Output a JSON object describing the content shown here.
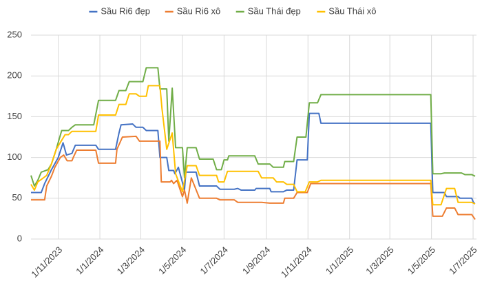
{
  "chart_data": {
    "type": "line",
    "xlim": [
      "2023-09-22",
      "2025-07-06"
    ],
    "xticks": [
      {
        "value": "2023-11-01",
        "label": "1/11/2023"
      },
      {
        "value": "2024-01-01",
        "label": "1/1/2024"
      },
      {
        "value": "2024-03-01",
        "label": "1/3/2024"
      },
      {
        "value": "2024-05-01",
        "label": "1/5/2024"
      },
      {
        "value": "2024-07-01",
        "label": "1/7/2024"
      },
      {
        "value": "2024-09-01",
        "label": "1/9/2024"
      },
      {
        "value": "2024-11-01",
        "label": "1/11/2024"
      },
      {
        "value": "2025-01-01",
        "label": "1/1/2025"
      },
      {
        "value": "2025-03-01",
        "label": "1/3/2025"
      },
      {
        "value": "2025-05-01",
        "label": "1/5/2025"
      },
      {
        "value": "2025-07-01",
        "label": "1/7/2025"
      }
    ],
    "ylim": [
      0,
      250
    ],
    "yticks": [
      0,
      50,
      100,
      150,
      200,
      250
    ],
    "grid": true,
    "legend": "top",
    "series": [
      {
        "name": "Sầu Ri6 đẹp",
        "color": "#4472c4",
        "x": [
          "2023-09-22",
          "2023-10-07",
          "2023-10-12",
          "2023-10-22",
          "2023-11-01",
          "2023-11-08",
          "2023-11-13",
          "2023-11-21",
          "2023-11-26",
          "2023-12-26",
          "2023-12-30",
          "2024-01-24",
          "2024-01-29",
          "2024-02-01",
          "2024-02-18",
          "2024-02-23",
          "2024-03-04",
          "2024-03-09",
          "2024-03-26",
          "2024-03-29",
          "2024-04-08",
          "2024-04-11",
          "2024-04-18",
          "2024-04-20",
          "2024-04-25",
          "2024-05-04",
          "2024-05-06",
          "2024-05-21",
          "2024-05-26",
          "2024-06-20",
          "2024-06-25",
          "2024-07-16",
          "2024-07-21",
          "2024-07-26",
          "2024-08-15",
          "2024-08-17",
          "2024-09-06",
          "2024-09-08",
          "2024-09-26",
          "2024-10-01",
          "2024-10-11",
          "2024-10-16",
          "2024-10-31",
          "2024-11-03",
          "2024-11-17",
          "2024-11-20",
          "2025-04-30",
          "2025-05-03",
          "2025-05-20",
          "2025-05-23",
          "2025-06-09",
          "2025-06-12",
          "2025-06-29",
          "2025-07-02",
          "2025-07-04"
        ],
        "values": [
          57,
          57,
          68,
          85,
          100,
          118,
          103,
          105,
          115,
          115,
          110,
          110,
          130,
          140,
          141,
          137,
          137,
          133,
          133,
          100,
          100,
          84,
          84,
          80,
          88,
          60,
          82,
          82,
          65,
          65,
          61,
          61,
          62,
          60,
          60,
          62,
          62,
          58,
          58,
          60,
          60,
          97,
          97,
          154,
          154,
          142,
          142,
          57,
          57,
          52,
          52,
          50,
          50,
          44,
          44
        ]
      },
      {
        "name": "Sầu Ri6 xô",
        "color": "#ed7d31",
        "x": [
          "2023-09-22",
          "2023-10-12",
          "2023-10-15",
          "2023-10-22",
          "2023-10-27",
          "2023-11-04",
          "2023-11-09",
          "2023-11-14",
          "2023-11-21",
          "2023-11-23",
          "2023-11-28",
          "2023-12-26",
          "2023-12-30",
          "2024-01-24",
          "2024-01-26",
          "2024-02-03",
          "2024-02-23",
          "2024-02-28",
          "2024-03-29",
          "2024-03-31",
          "2024-04-13",
          "2024-04-15",
          "2024-04-18",
          "2024-04-23",
          "2024-05-01",
          "2024-05-04",
          "2024-05-08",
          "2024-05-14",
          "2024-05-26",
          "2024-06-20",
          "2024-06-25",
          "2024-07-16",
          "2024-07-21",
          "2024-08-25",
          "2024-09-06",
          "2024-09-26",
          "2024-09-28",
          "2024-10-11",
          "2024-10-16",
          "2024-10-31",
          "2024-11-05",
          "2025-04-30",
          "2025-05-03",
          "2025-05-17",
          "2025-05-23",
          "2025-06-04",
          "2025-06-09",
          "2025-06-29",
          "2025-07-04"
        ],
        "values": [
          48,
          48,
          65,
          77,
          88,
          100,
          103,
          96,
          96,
          100,
          109,
          109,
          93,
          93,
          110,
          125,
          126,
          120,
          120,
          70,
          70,
          72,
          68,
          72,
          52,
          60,
          44,
          75,
          50,
          50,
          48,
          48,
          45,
          45,
          44,
          44,
          50,
          50,
          57,
          57,
          68,
          68,
          28,
          28,
          38,
          38,
          30,
          30,
          24
        ]
      },
      {
        "name": "Sầu Thái đẹp",
        "color": "#70ad47",
        "x": [
          "2023-09-22",
          "2023-09-27",
          "2023-10-02",
          "2023-10-07",
          "2023-10-17",
          "2023-10-22",
          "2023-10-29",
          "2023-11-06",
          "2023-11-16",
          "2023-11-21",
          "2023-11-26",
          "2023-12-23",
          "2023-12-30",
          "2024-01-24",
          "2024-01-29",
          "2024-02-08",
          "2024-02-13",
          "2024-03-04",
          "2024-03-09",
          "2024-03-26",
          "2024-03-29",
          "2024-04-08",
          "2024-04-11",
          "2024-04-16",
          "2024-04-21",
          "2024-05-01",
          "2024-05-04",
          "2024-05-08",
          "2024-05-21",
          "2024-05-26",
          "2024-06-15",
          "2024-06-20",
          "2024-06-27",
          "2024-07-01",
          "2024-07-06",
          "2024-07-08",
          "2024-08-15",
          "2024-08-20",
          "2024-09-06",
          "2024-09-11",
          "2024-09-26",
          "2024-09-28",
          "2024-10-11",
          "2024-10-16",
          "2024-10-29",
          "2024-11-03",
          "2024-11-15",
          "2024-11-20",
          "2025-04-30",
          "2025-05-03",
          "2025-05-15",
          "2025-05-20",
          "2025-06-14",
          "2025-06-19",
          "2025-06-29",
          "2025-07-04"
        ],
        "values": [
          78,
          65,
          72,
          82,
          85,
          92,
          110,
          133,
          133,
          137,
          140,
          140,
          170,
          170,
          182,
          182,
          193,
          193,
          210,
          210,
          184,
          184,
          120,
          185,
          112,
          112,
          75,
          112,
          112,
          98,
          98,
          85,
          85,
          97,
          97,
          102,
          102,
          92,
          92,
          88,
          88,
          95,
          95,
          125,
          125,
          167,
          167,
          177,
          177,
          80,
          80,
          81,
          81,
          79,
          79,
          77
        ]
      },
      {
        "name": "Sầu Thái xô",
        "color": "#ffc000",
        "x": [
          "2023-09-22",
          "2023-09-27",
          "2023-10-02",
          "2023-10-07",
          "2023-10-15",
          "2023-10-22",
          "2023-10-29",
          "2023-11-11",
          "2023-11-16",
          "2023-11-21",
          "2023-12-26",
          "2023-12-30",
          "2024-01-24",
          "2024-01-29",
          "2024-02-08",
          "2024-02-13",
          "2024-02-23",
          "2024-02-28",
          "2024-03-09",
          "2024-03-12",
          "2024-03-29",
          "2024-04-01",
          "2024-04-08",
          "2024-04-16",
          "2024-04-21",
          "2024-05-01",
          "2024-05-08",
          "2024-05-21",
          "2024-05-26",
          "2024-06-20",
          "2024-06-23",
          "2024-07-01",
          "2024-07-06",
          "2024-08-20",
          "2024-08-25",
          "2024-09-11",
          "2024-09-16",
          "2024-09-26",
          "2024-10-01",
          "2024-10-11",
          "2024-10-16",
          "2024-10-28",
          "2024-11-03",
          "2024-11-15",
          "2024-11-20",
          "2025-04-30",
          "2025-05-03",
          "2025-05-15",
          "2025-05-23",
          "2025-06-04",
          "2025-06-09",
          "2025-06-29",
          "2025-07-04"
        ],
        "values": [
          67,
          60,
          70,
          73,
          78,
          92,
          110,
          128,
          128,
          132,
          132,
          152,
          152,
          165,
          165,
          178,
          178,
          175,
          175,
          188,
          188,
          160,
          110,
          130,
          80,
          58,
          90,
          90,
          78,
          78,
          70,
          70,
          83,
          83,
          75,
          75,
          70,
          70,
          67,
          67,
          58,
          58,
          70,
          70,
          72,
          72,
          42,
          42,
          62,
          62,
          45,
          45,
          43
        ]
      }
    ]
  }
}
